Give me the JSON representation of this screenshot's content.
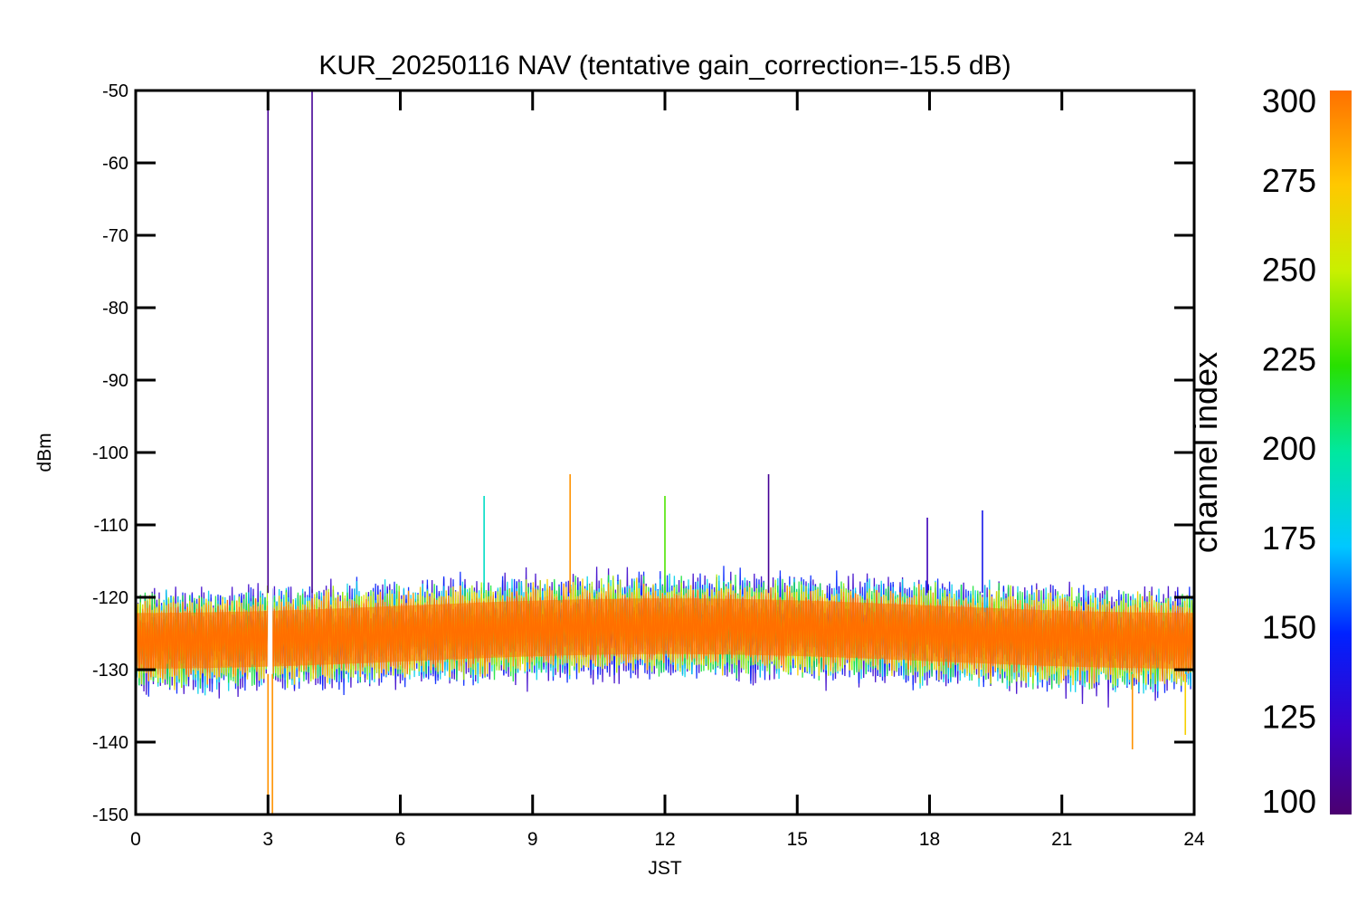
{
  "chart_data": {
    "type": "line",
    "title": "KUR_20250116 NAV (tentative gain_correction=-15.5 dB)",
    "xlabel": "JST",
    "ylabel": "dBm",
    "xlim": [
      0,
      24
    ],
    "ylim": [
      -150,
      -50
    ],
    "xticks": [
      "0",
      "3",
      "6",
      "9",
      "12",
      "15",
      "18",
      "21",
      "24"
    ],
    "yticks": [
      "-50",
      "-60",
      "-70",
      "-80",
      "-90",
      "-100",
      "-110",
      "-120",
      "-130",
      "-140",
      "-150"
    ],
    "colorbar": {
      "label": "channel index",
      "range": [
        100,
        300
      ],
      "ticks": [
        "300",
        "275",
        "250",
        "225",
        "200",
        "175",
        "150",
        "125",
        "100"
      ]
    },
    "series_summary": {
      "typical_center_dBm": -125,
      "typical_upper_dBm": -118,
      "typical_lower_dBm": -132,
      "data_gap_JST": 3.05
    },
    "spikes": [
      {
        "x": 3.0,
        "y": -50,
        "channel": 110
      },
      {
        "x": 4.0,
        "y": -50,
        "channel": 110
      },
      {
        "x": 3.0,
        "y": -150,
        "channel": 290
      },
      {
        "x": 3.1,
        "y": -150,
        "channel": 290
      },
      {
        "x": 7.9,
        "y": -106,
        "channel": 190
      },
      {
        "x": 9.85,
        "y": -103,
        "channel": 290
      },
      {
        "x": 12.0,
        "y": -106,
        "channel": 230
      },
      {
        "x": 14.35,
        "y": -103,
        "channel": 110
      },
      {
        "x": 17.95,
        "y": -109,
        "channel": 120
      },
      {
        "x": 19.2,
        "y": -108,
        "channel": 140
      },
      {
        "x": 22.6,
        "y": -141,
        "channel": 290
      },
      {
        "x": 23.8,
        "y": -139,
        "channel": 270
      }
    ],
    "legend": "colorbar-right",
    "grid": false
  }
}
